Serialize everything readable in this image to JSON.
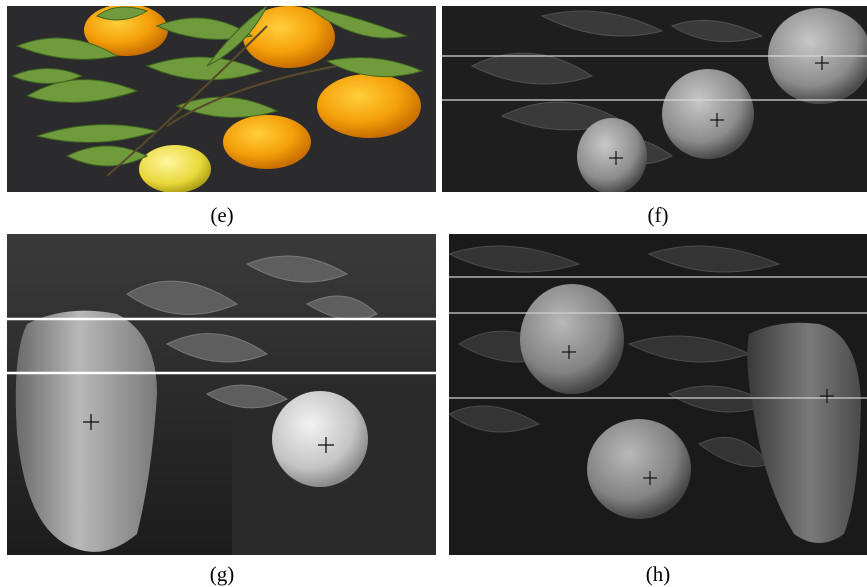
{
  "figure": {
    "panels": [
      {
        "id": "e",
        "label": "(e)",
        "kind": "color-photo",
        "content": "oranges-and-lemon-with-leaves"
      },
      {
        "id": "f",
        "label": "(f)",
        "kind": "grayscale-photo",
        "content": "fruits-with-leaves",
        "scan_lines": 2,
        "markers": 3
      },
      {
        "id": "g",
        "label": "(g)",
        "kind": "grayscale-photo",
        "content": "pepper-and-orange-with-leaves",
        "scan_lines": 2,
        "markers": 2
      },
      {
        "id": "h",
        "label": "(h)",
        "kind": "grayscale-photo",
        "content": "oranges-and-pepper-with-leaves",
        "scan_lines": 3,
        "markers": 3
      }
    ],
    "marker_symbol": "+"
  }
}
